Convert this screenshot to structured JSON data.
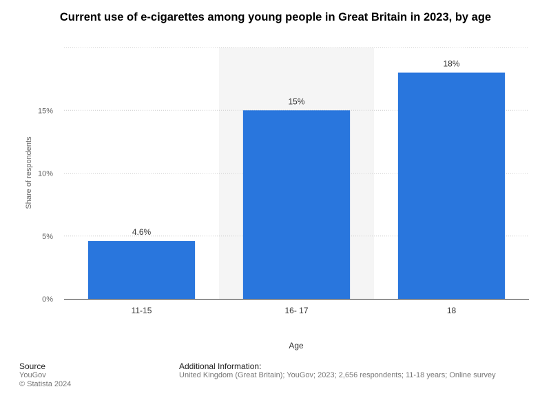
{
  "chart_data": {
    "type": "bar",
    "title": "Current use of e-cigarettes among young people in Great Britain in 2023, by age",
    "xlabel": "Age",
    "ylabel": "Share of respondents",
    "categories": [
      "11-15",
      "16- 17",
      "18"
    ],
    "values": [
      4.6,
      15,
      18
    ],
    "value_labels": [
      "4.6%",
      "15%",
      "18%"
    ],
    "ylim": [
      0,
      20
    ],
    "yticks": [
      0,
      5,
      10,
      15
    ],
    "ytick_labels": [
      "0%",
      "5%",
      "10%",
      "15%"
    ],
    "grid": true,
    "highlighted_category_index": 1,
    "colors": {
      "bar": "#2976dd",
      "grid": "#cccccc",
      "highlight_band": "#f5f5f5",
      "axis": "#333333"
    }
  },
  "footer": {
    "source_heading": "Source",
    "source_name": "YouGov",
    "copyright": "© Statista 2024",
    "additional_heading": "Additional Information:",
    "additional_text": "United Kingdom (Great Britain); YouGov; 2023; 2,656 respondents; 11-18 years; Online survey"
  }
}
